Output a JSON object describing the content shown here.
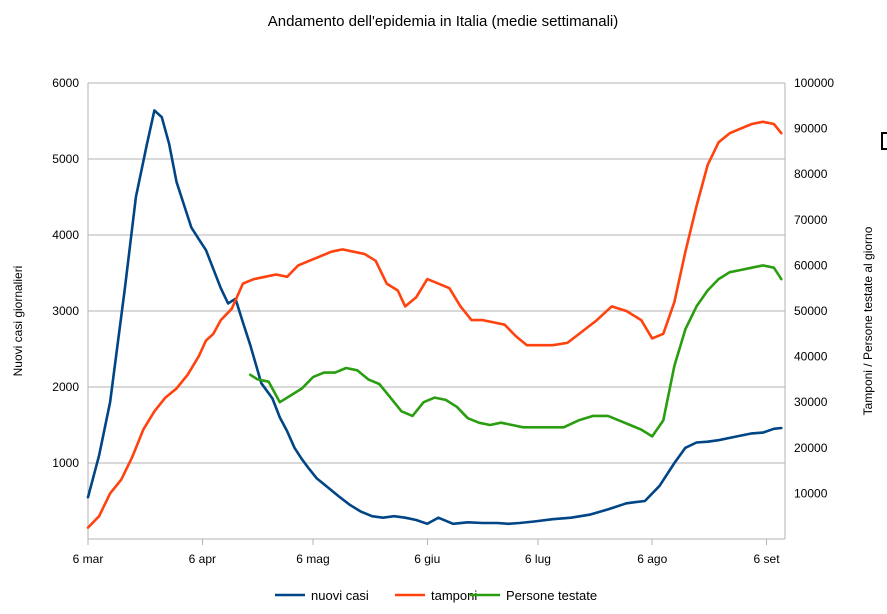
{
  "chart_data": {
    "type": "line",
    "title": "Andamento dell'epidemia in Italia (medie settimanali)",
    "ylabel_left": "Nuovi casi giornalieri",
    "ylabel_right": "Tamponi / Persone testate al giorno",
    "ylim_left": [
      0,
      6000
    ],
    "ylim_right": [
      0,
      100000
    ],
    "yticks_left": [
      "1000",
      "2000",
      "3000",
      "4000",
      "5000",
      "6000"
    ],
    "yticks_right": [
      "10000",
      "20000",
      "30000",
      "40000",
      "50000",
      "60000",
      "70000",
      "80000",
      "90000",
      "100000"
    ],
    "xticks": [
      "6 mar",
      "6 apr",
      "6 mag",
      "6 giu",
      "6 lug",
      "6 ago",
      "6 set"
    ],
    "grid": true,
    "legend_position": "bottom",
    "series": [
      {
        "name": "nuovi casi",
        "axis": "left",
        "color": "#004586",
        "x": [
          "2020-03-06",
          "2020-03-09",
          "2020-03-12",
          "2020-03-16",
          "2020-03-19",
          "2020-03-22",
          "2020-03-24",
          "2020-03-26",
          "2020-03-28",
          "2020-03-30",
          "2020-04-01",
          "2020-04-03",
          "2020-04-05",
          "2020-04-07",
          "2020-04-09",
          "2020-04-11",
          "2020-04-13",
          "2020-04-15",
          "2020-04-17",
          "2020-04-19",
          "2020-04-22",
          "2020-04-25",
          "2020-04-27",
          "2020-04-29",
          "2020-05-01",
          "2020-05-03",
          "2020-05-05",
          "2020-05-07",
          "2020-05-10",
          "2020-05-13",
          "2020-05-16",
          "2020-05-19",
          "2020-05-22",
          "2020-05-25",
          "2020-05-28",
          "2020-05-31",
          "2020-06-03",
          "2020-06-06",
          "2020-06-09",
          "2020-06-13",
          "2020-06-17",
          "2020-06-21",
          "2020-06-25",
          "2020-06-28",
          "2020-07-01",
          "2020-07-05",
          "2020-07-10",
          "2020-07-15",
          "2020-07-20",
          "2020-07-25",
          "2020-07-30",
          "2020-08-04",
          "2020-08-08",
          "2020-08-12",
          "2020-08-15",
          "2020-08-18",
          "2020-08-21",
          "2020-08-24",
          "2020-08-27",
          "2020-08-30",
          "2020-09-02",
          "2020-09-05",
          "2020-09-08",
          "2020-09-10"
        ],
        "values": [
          550,
          1100,
          1800,
          3300,
          4500,
          5200,
          5640,
          5550,
          5200,
          4700,
          4400,
          4100,
          3950,
          3800,
          3550,
          3300,
          3100,
          3160,
          2850,
          2550,
          2050,
          1850,
          1600,
          1420,
          1200,
          1050,
          920,
          800,
          680,
          560,
          450,
          360,
          300,
          280,
          300,
          280,
          250,
          200,
          280,
          200,
          220,
          210,
          210,
          200,
          210,
          230,
          260,
          280,
          320,
          390,
          470,
          500,
          700,
          1000,
          1200,
          1270,
          1280,
          1300,
          1330,
          1360,
          1390,
          1400,
          1450,
          1460
        ]
      },
      {
        "name": "tamponi",
        "axis": "right",
        "color": "#ff420e",
        "x": [
          "2020-03-06",
          "2020-03-09",
          "2020-03-12",
          "2020-03-15",
          "2020-03-18",
          "2020-03-21",
          "2020-03-24",
          "2020-03-27",
          "2020-03-30",
          "2020-04-02",
          "2020-04-05",
          "2020-04-07",
          "2020-04-09",
          "2020-04-11",
          "2020-04-14",
          "2020-04-17",
          "2020-04-20",
          "2020-04-23",
          "2020-04-26",
          "2020-04-29",
          "2020-05-02",
          "2020-05-05",
          "2020-05-08",
          "2020-05-11",
          "2020-05-14",
          "2020-05-17",
          "2020-05-20",
          "2020-05-23",
          "2020-05-26",
          "2020-05-29",
          "2020-05-31",
          "2020-06-03",
          "2020-06-06",
          "2020-06-09",
          "2020-06-12",
          "2020-06-15",
          "2020-06-18",
          "2020-06-21",
          "2020-06-24",
          "2020-06-27",
          "2020-06-30",
          "2020-07-03",
          "2020-07-06",
          "2020-07-10",
          "2020-07-14",
          "2020-07-18",
          "2020-07-22",
          "2020-07-26",
          "2020-07-30",
          "2020-08-03",
          "2020-08-06",
          "2020-08-09",
          "2020-08-12",
          "2020-08-15",
          "2020-08-18",
          "2020-08-21",
          "2020-08-24",
          "2020-08-27",
          "2020-08-30",
          "2020-09-02",
          "2020-09-05",
          "2020-09-08",
          "2020-09-10"
        ],
        "values": [
          2500,
          5000,
          10000,
          13000,
          18000,
          24000,
          28000,
          31000,
          33000,
          36000,
          40000,
          43500,
          45000,
          48000,
          50500,
          56000,
          57000,
          57500,
          58000,
          57500,
          60000,
          61000,
          62000,
          63000,
          63500,
          63000,
          62500,
          61000,
          56000,
          54500,
          51000,
          53000,
          57000,
          56000,
          55000,
          51000,
          48000,
          48000,
          47500,
          47000,
          44500,
          42500,
          42500,
          42500,
          43000,
          45500,
          48000,
          51000,
          50000,
          48000,
          44000,
          45000,
          52000,
          63000,
          73000,
          82000,
          87000,
          89000,
          90000,
          91000,
          91500,
          91000,
          89000
        ]
      },
      {
        "name": "Persone testate",
        "axis": "right",
        "color": "#2a9d10",
        "x": [
          "2020-04-19",
          "2020-04-21",
          "2020-04-24",
          "2020-04-27",
          "2020-04-30",
          "2020-05-03",
          "2020-05-06",
          "2020-05-09",
          "2020-05-12",
          "2020-05-15",
          "2020-05-18",
          "2020-05-21",
          "2020-05-24",
          "2020-05-27",
          "2020-05-30",
          "2020-06-02",
          "2020-06-05",
          "2020-06-08",
          "2020-06-11",
          "2020-06-14",
          "2020-06-17",
          "2020-06-20",
          "2020-06-23",
          "2020-06-26",
          "2020-06-29",
          "2020-07-02",
          "2020-07-05",
          "2020-07-09",
          "2020-07-13",
          "2020-07-17",
          "2020-07-21",
          "2020-07-25",
          "2020-07-28",
          "2020-07-31",
          "2020-08-03",
          "2020-08-06",
          "2020-08-09",
          "2020-08-12",
          "2020-08-15",
          "2020-08-18",
          "2020-08-21",
          "2020-08-24",
          "2020-08-27",
          "2020-08-30",
          "2020-09-02",
          "2020-09-05",
          "2020-09-08",
          "2020-09-10"
        ],
        "values": [
          36000,
          35000,
          34500,
          30000,
          31500,
          33000,
          35500,
          36500,
          36500,
          37500,
          37000,
          35000,
          34000,
          31000,
          28000,
          27000,
          30000,
          31000,
          30500,
          29000,
          26500,
          25500,
          25000,
          25500,
          25000,
          24500,
          24500,
          24500,
          24500,
          26000,
          27000,
          27000,
          26000,
          25000,
          24000,
          22500,
          26000,
          38000,
          46000,
          51000,
          54500,
          57000,
          58500,
          59000,
          59500,
          60000,
          59500,
          57000
        ]
      }
    ]
  }
}
